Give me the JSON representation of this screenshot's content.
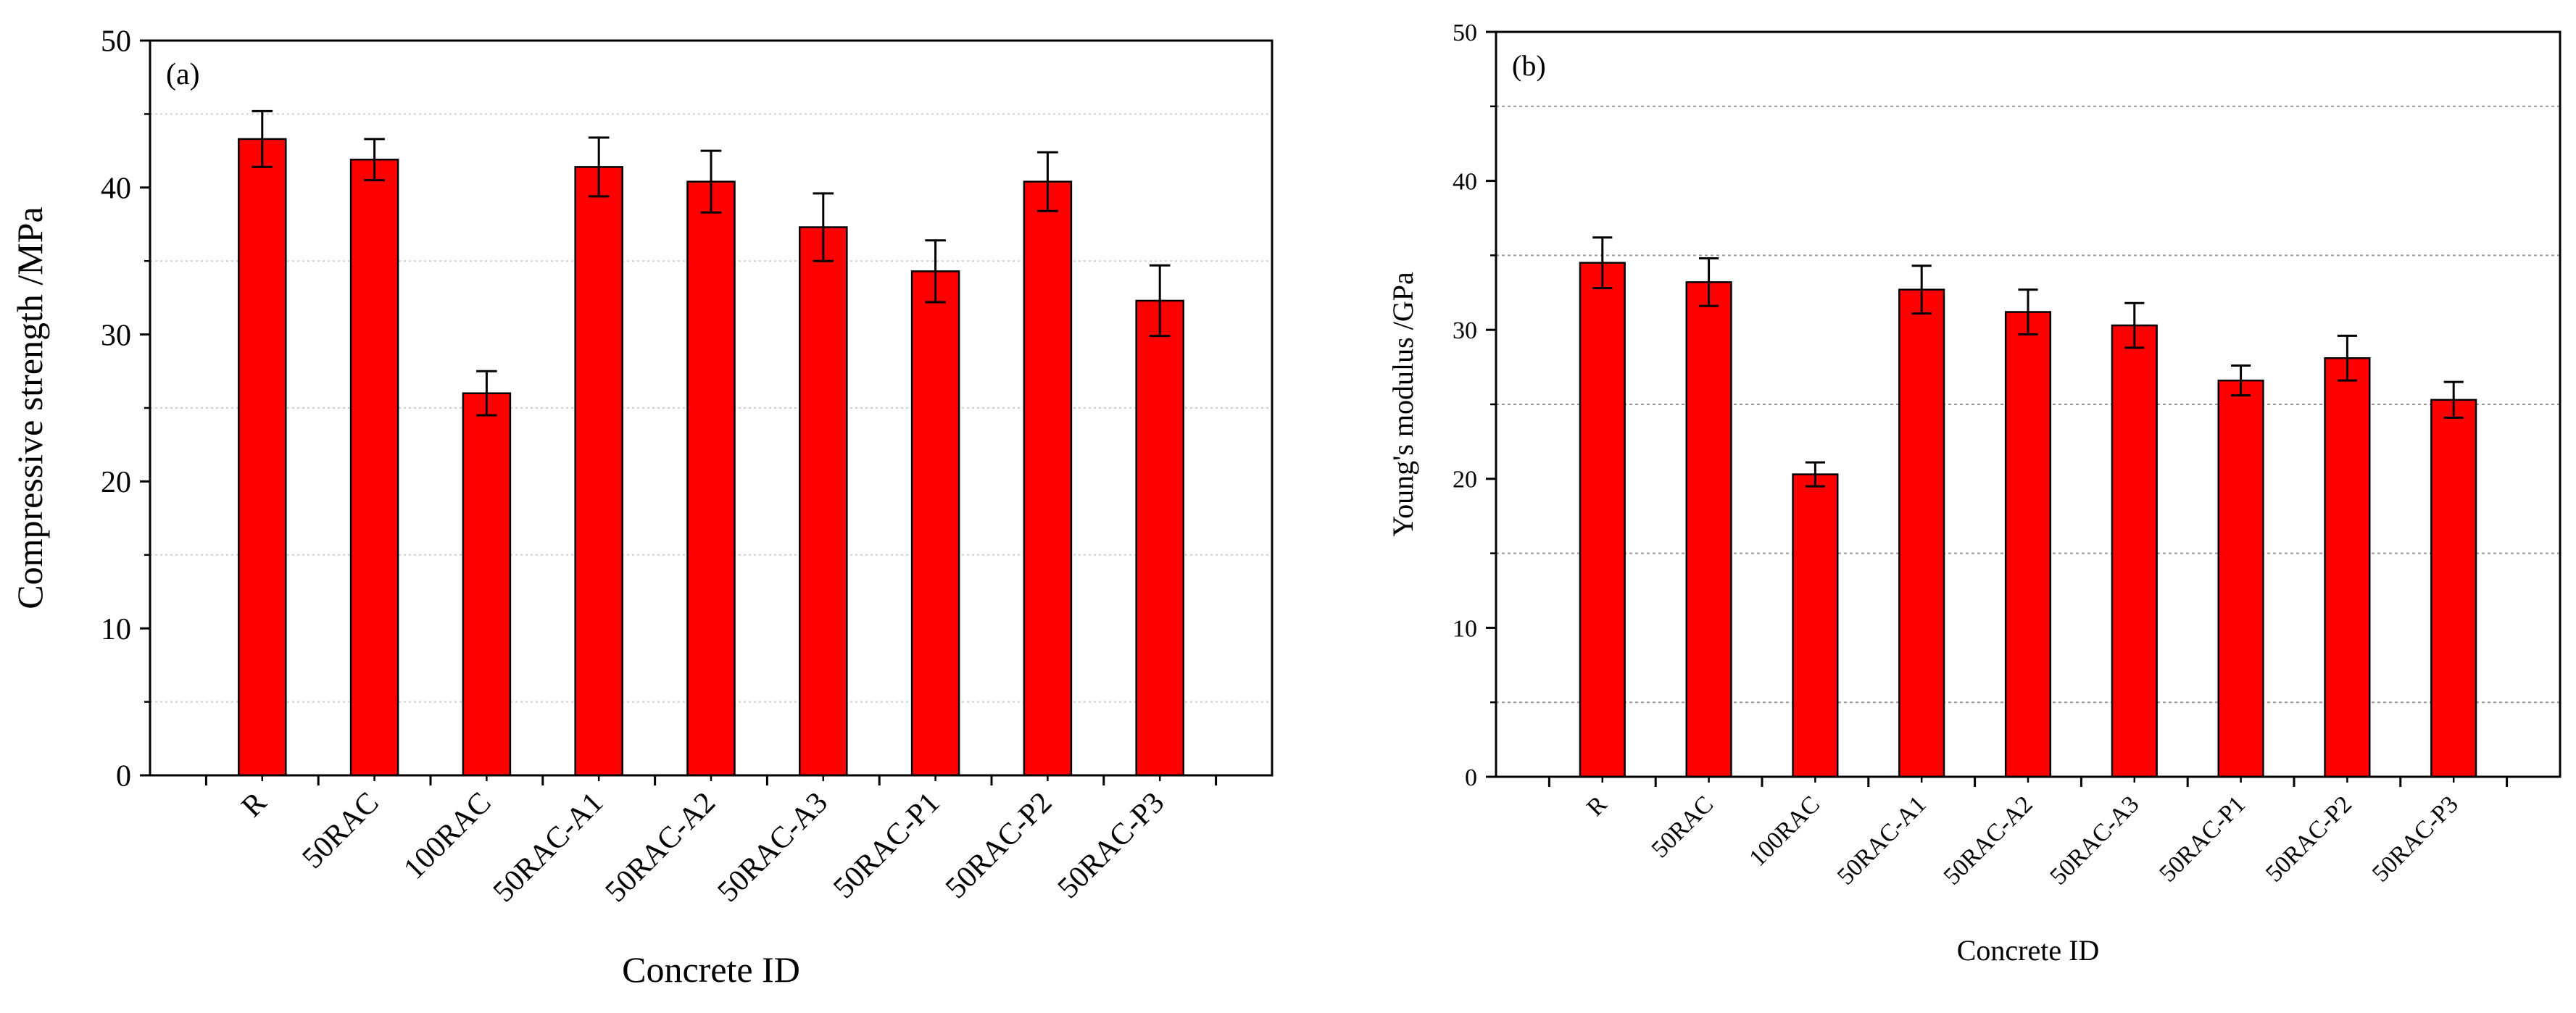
{
  "chart_data": [
    {
      "type": "bar",
      "panel_label": "(a)",
      "title": "",
      "xlabel": "Concrete ID",
      "ylabel": "Compressive strength /MPa",
      "categories": [
        "R",
        "50RAC",
        "100RAC",
        "50RAC-A1",
        "50RAC-A2",
        "50RAC-A3",
        "50RAC-P1",
        "50RAC-P2",
        "50RAC-P3"
      ],
      "values": [
        43.3,
        41.9,
        26.0,
        41.4,
        40.4,
        37.3,
        34.3,
        40.4,
        32.3
      ],
      "errors": [
        1.9,
        1.4,
        1.5,
        2.0,
        2.1,
        2.3,
        2.1,
        2.0,
        2.4
      ],
      "ylim": [
        0,
        50
      ],
      "yticks": [
        0,
        10,
        20,
        30,
        40,
        50
      ],
      "ytick_labels": [
        "0",
        "10",
        "20",
        "30",
        "40",
        "50"
      ],
      "gridlines": [
        5,
        15,
        25,
        35,
        45
      ],
      "bar_color": "#ff0000",
      "grid": true
    },
    {
      "type": "bar",
      "panel_label": "(b)",
      "title": "",
      "xlabel": "Concrete ID",
      "ylabel": "Young's modulus /GPa",
      "categories": [
        "R",
        "50RAC",
        "100RAC",
        "50RAC-A1",
        "50RAC-A2",
        "50RAC-A3",
        "50RAC-P1",
        "50RAC-P2",
        "50RAC-P3"
      ],
      "values": [
        34.5,
        33.2,
        20.3,
        32.7,
        31.2,
        30.3,
        26.6,
        28.1,
        25.3
      ],
      "errors": [
        1.7,
        1.6,
        0.8,
        1.6,
        1.5,
        1.5,
        1.0,
        1.5,
        1.2
      ],
      "ylim": [
        0,
        50
      ],
      "yticks": [
        0,
        10,
        20,
        30,
        40,
        50
      ],
      "ytick_labels": [
        "0",
        "10",
        "20",
        "30",
        "40",
        "50"
      ],
      "gridlines": [
        5,
        15,
        25,
        35,
        45
      ],
      "bar_color": "#ff0000",
      "grid": true
    }
  ]
}
